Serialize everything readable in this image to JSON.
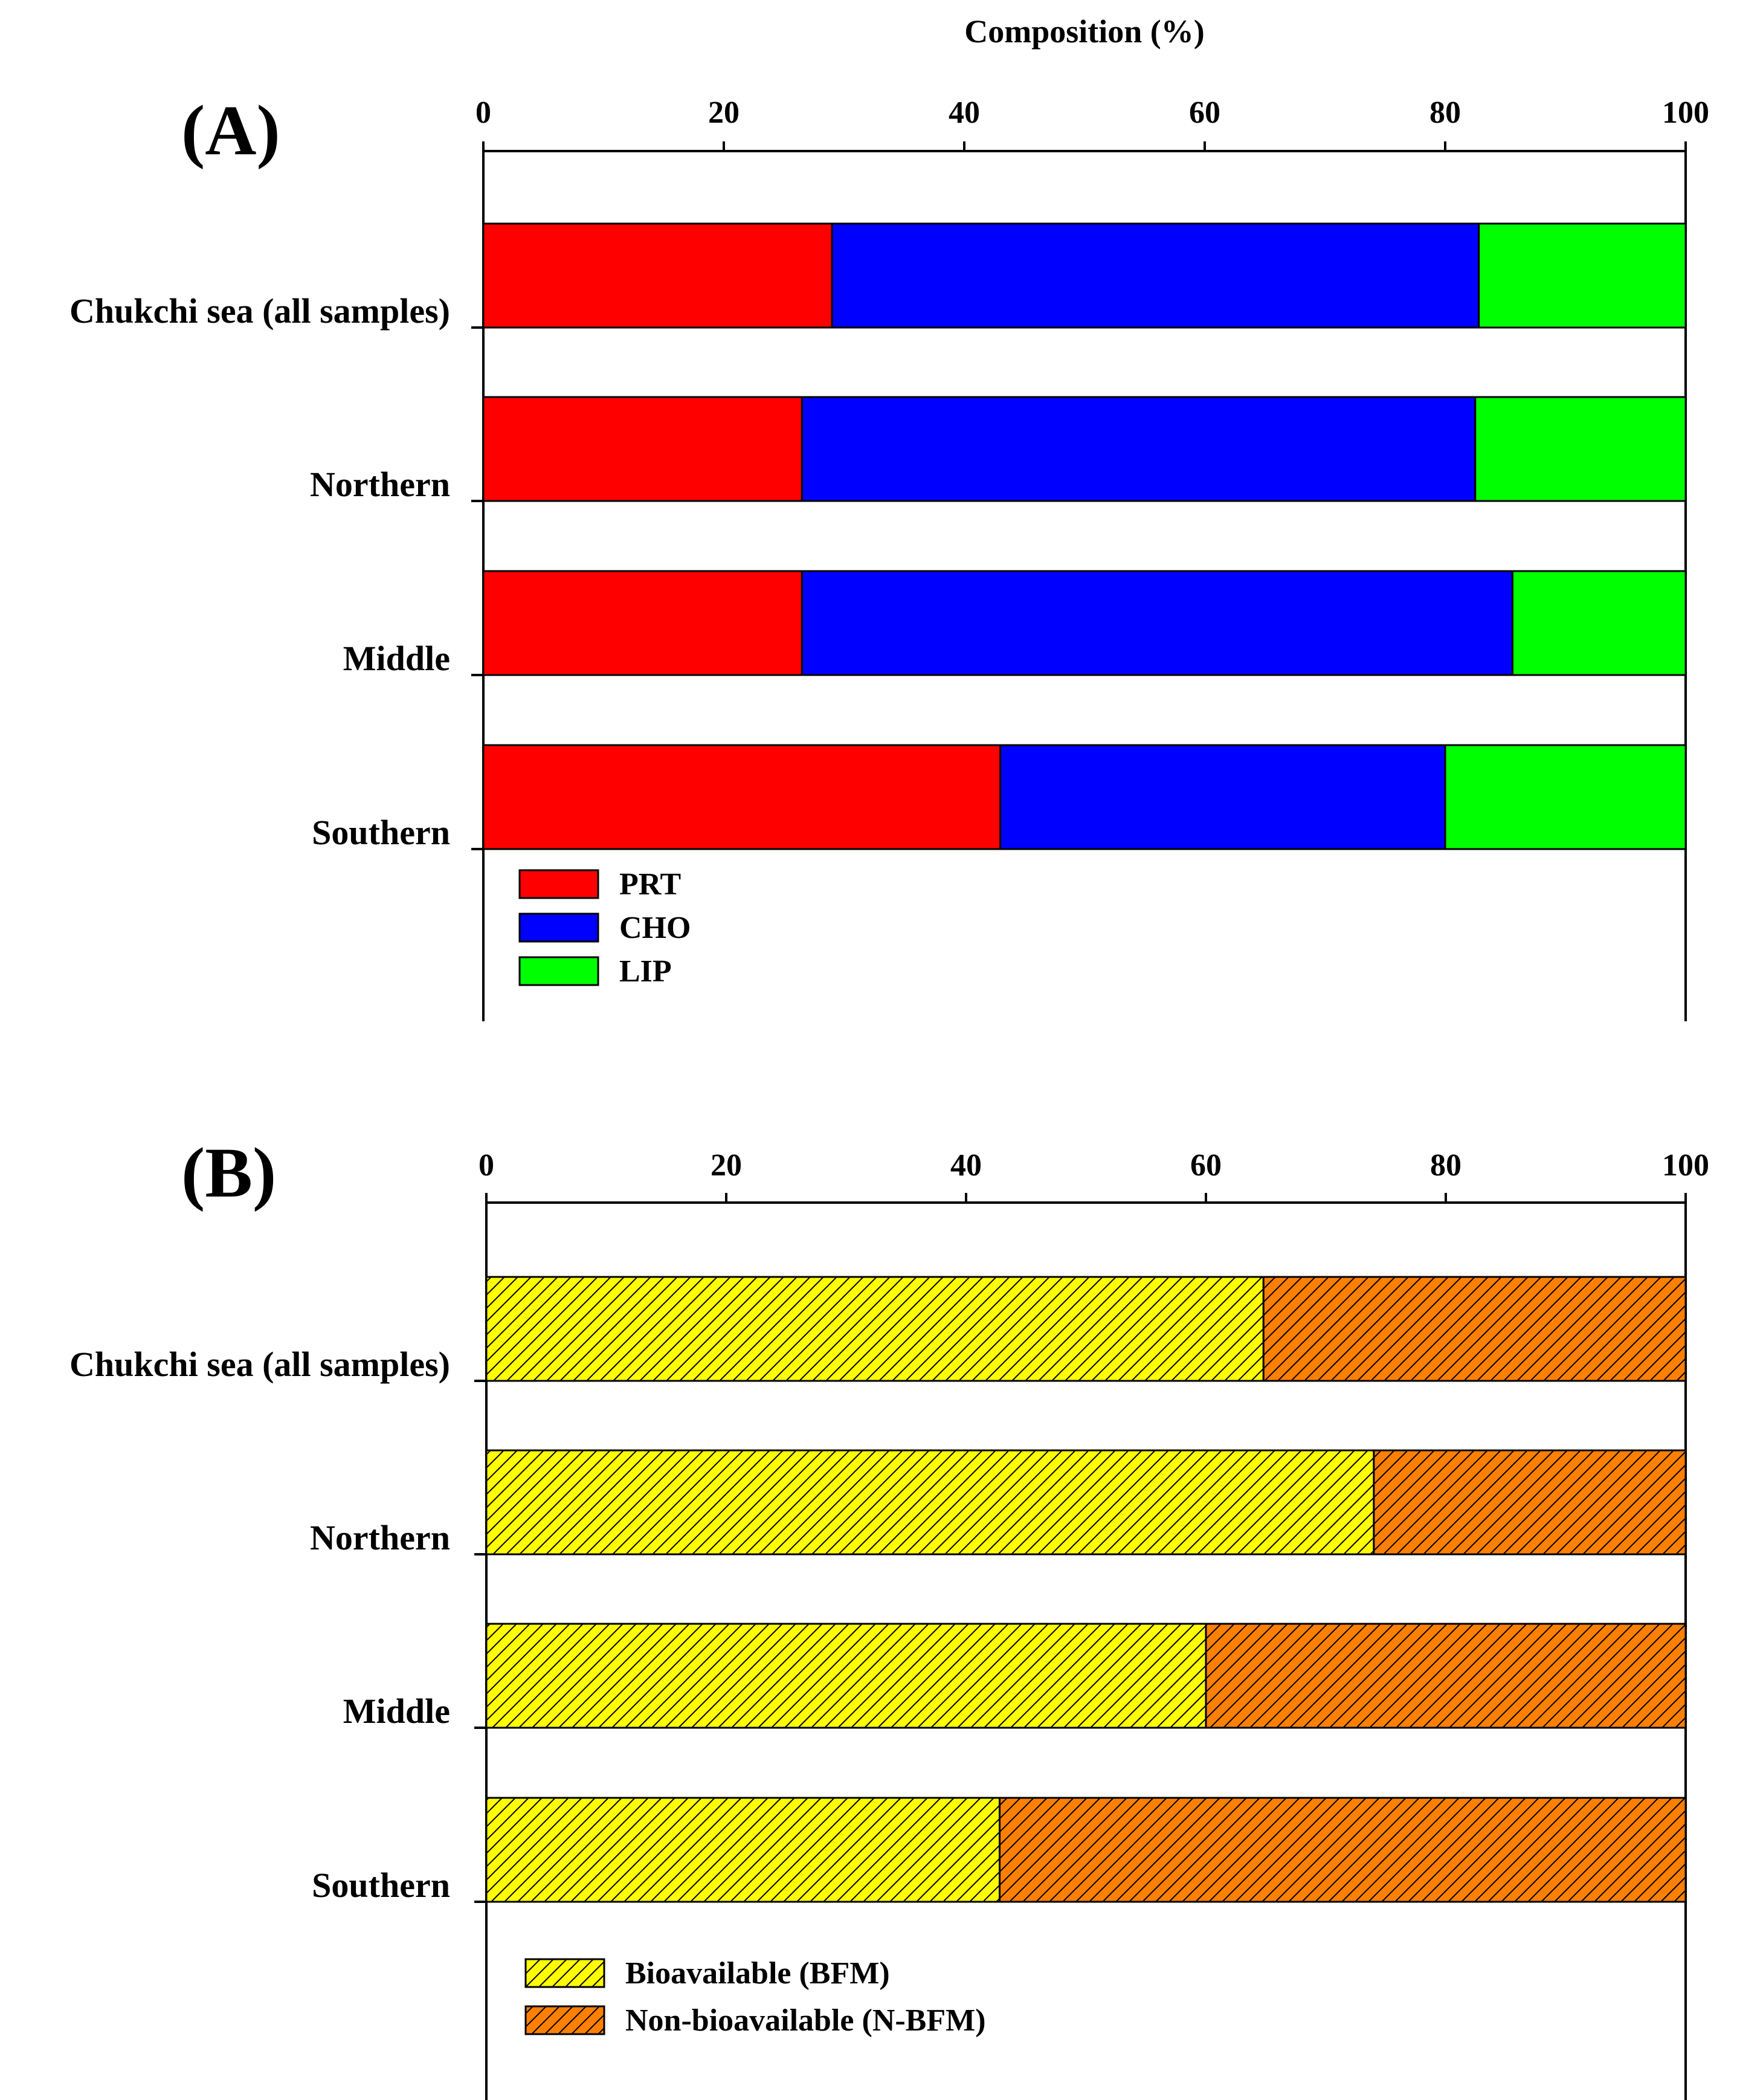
{
  "figure_title": "Composition (%)",
  "chart_data": [
    {
      "panel": "(A)",
      "type": "bar",
      "orientation": "horizontal",
      "stacked": true,
      "xlim": [
        0,
        100
      ],
      "xticks": [
        "0",
        "20",
        "40",
        "60",
        "80",
        "100"
      ],
      "categories": [
        "Chukchi sea (all samples)",
        "Northern",
        "Middle",
        "Southern"
      ],
      "series": [
        {
          "name": "PRT",
          "color": "#ff0000",
          "pattern": "solid",
          "values": [
            29,
            26.5,
            26.5,
            43
          ]
        },
        {
          "name": "CHO",
          "color": "#0000ff",
          "pattern": "solid",
          "values": [
            53.8,
            56,
            59.1,
            37
          ]
        },
        {
          "name": "LIP",
          "color": "#00ff00",
          "pattern": "solid",
          "values": [
            17.2,
            17.5,
            14.4,
            20
          ]
        }
      ],
      "legend_position": "bottom-left"
    },
    {
      "panel": "(B)",
      "type": "bar",
      "orientation": "horizontal",
      "stacked": true,
      "xlim": [
        0,
        100
      ],
      "xticks": [
        "0",
        "20",
        "40",
        "60",
        "80",
        "100"
      ],
      "categories": [
        "Chukchi sea (all samples)",
        "Northern",
        "Middle",
        "Southern"
      ],
      "series": [
        {
          "name": "Bioavailable (BFM)",
          "color": "#ffff00",
          "pattern": "hatch",
          "values": [
            64.8,
            74,
            60,
            42.8
          ]
        },
        {
          "name": "Non-bioavailable (N-BFM)",
          "color": "#ff8000",
          "pattern": "hatch",
          "values": [
            35.2,
            26,
            40,
            57.2
          ]
        }
      ],
      "legend_position": "bottom-left"
    }
  ]
}
